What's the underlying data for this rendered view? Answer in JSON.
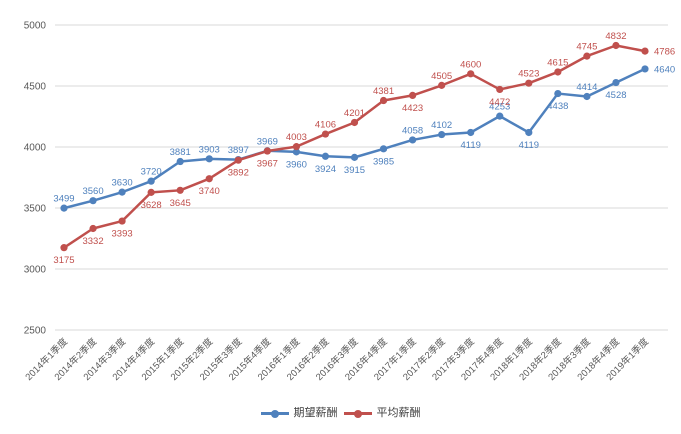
{
  "chart_data": {
    "type": "line",
    "title": "",
    "xlabel": "",
    "ylabel": "",
    "categories": [
      "2014年1季度",
      "2014年2季度",
      "2014年3季度",
      "2014年4季度",
      "2015年1季度",
      "2015年2季度",
      "2015年3季度",
      "2015年4季度",
      "2016年1季度",
      "2016年2季度",
      "2016年3季度",
      "2016年4季度",
      "2017年1季度",
      "2017年2季度",
      "2017年3季度",
      "2017年4季度",
      "2018年1季度",
      "2018年2季度",
      "2018年3季度",
      "2018年4季度",
      "2019年1季度"
    ],
    "series": [
      {
        "id": "expected-salary",
        "name": "期望薪酬",
        "color": "#4F81BD",
        "values": [
          3499,
          3560,
          3630,
          3720,
          3881,
          3903,
          3897,
          3969,
          3960,
          3924,
          3915,
          3985,
          4058,
          4102,
          4119,
          4253,
          4119,
          4438,
          4414,
          4528,
          4640
        ],
        "label_positions": [
          "above",
          "above",
          "above",
          "above",
          "above",
          "above",
          "above",
          "above",
          "below",
          "below",
          "below",
          "below",
          "above",
          "above",
          "below",
          "above",
          "below",
          "below",
          "above",
          "below",
          "right"
        ]
      },
      {
        "id": "average-salary",
        "name": "平均薪酬",
        "color": "#C0504D",
        "values": [
          3175,
          3332,
          3393,
          3628,
          3645,
          3740,
          3892,
          3967,
          4003,
          4106,
          4201,
          4381,
          4423,
          4505,
          4600,
          4472,
          4523,
          4615,
          4745,
          4832,
          4786
        ],
        "label_positions": [
          "below",
          "below",
          "below",
          "below",
          "below",
          "below",
          "below",
          "below",
          "above",
          "above",
          "above",
          "above",
          "below",
          "above",
          "above",
          "below",
          "above",
          "above",
          "above",
          "above",
          "right"
        ]
      }
    ],
    "y_axis": {
      "min": 2500,
      "max": 5000,
      "ticks": [
        5000,
        4500,
        4000,
        3500,
        3000,
        2500
      ]
    },
    "grid": true,
    "legend_position": "bottom",
    "colors": {
      "grid_line": "#D9D9D9",
      "axis_text": "#595959",
      "background": "#FFFFFF"
    }
  }
}
